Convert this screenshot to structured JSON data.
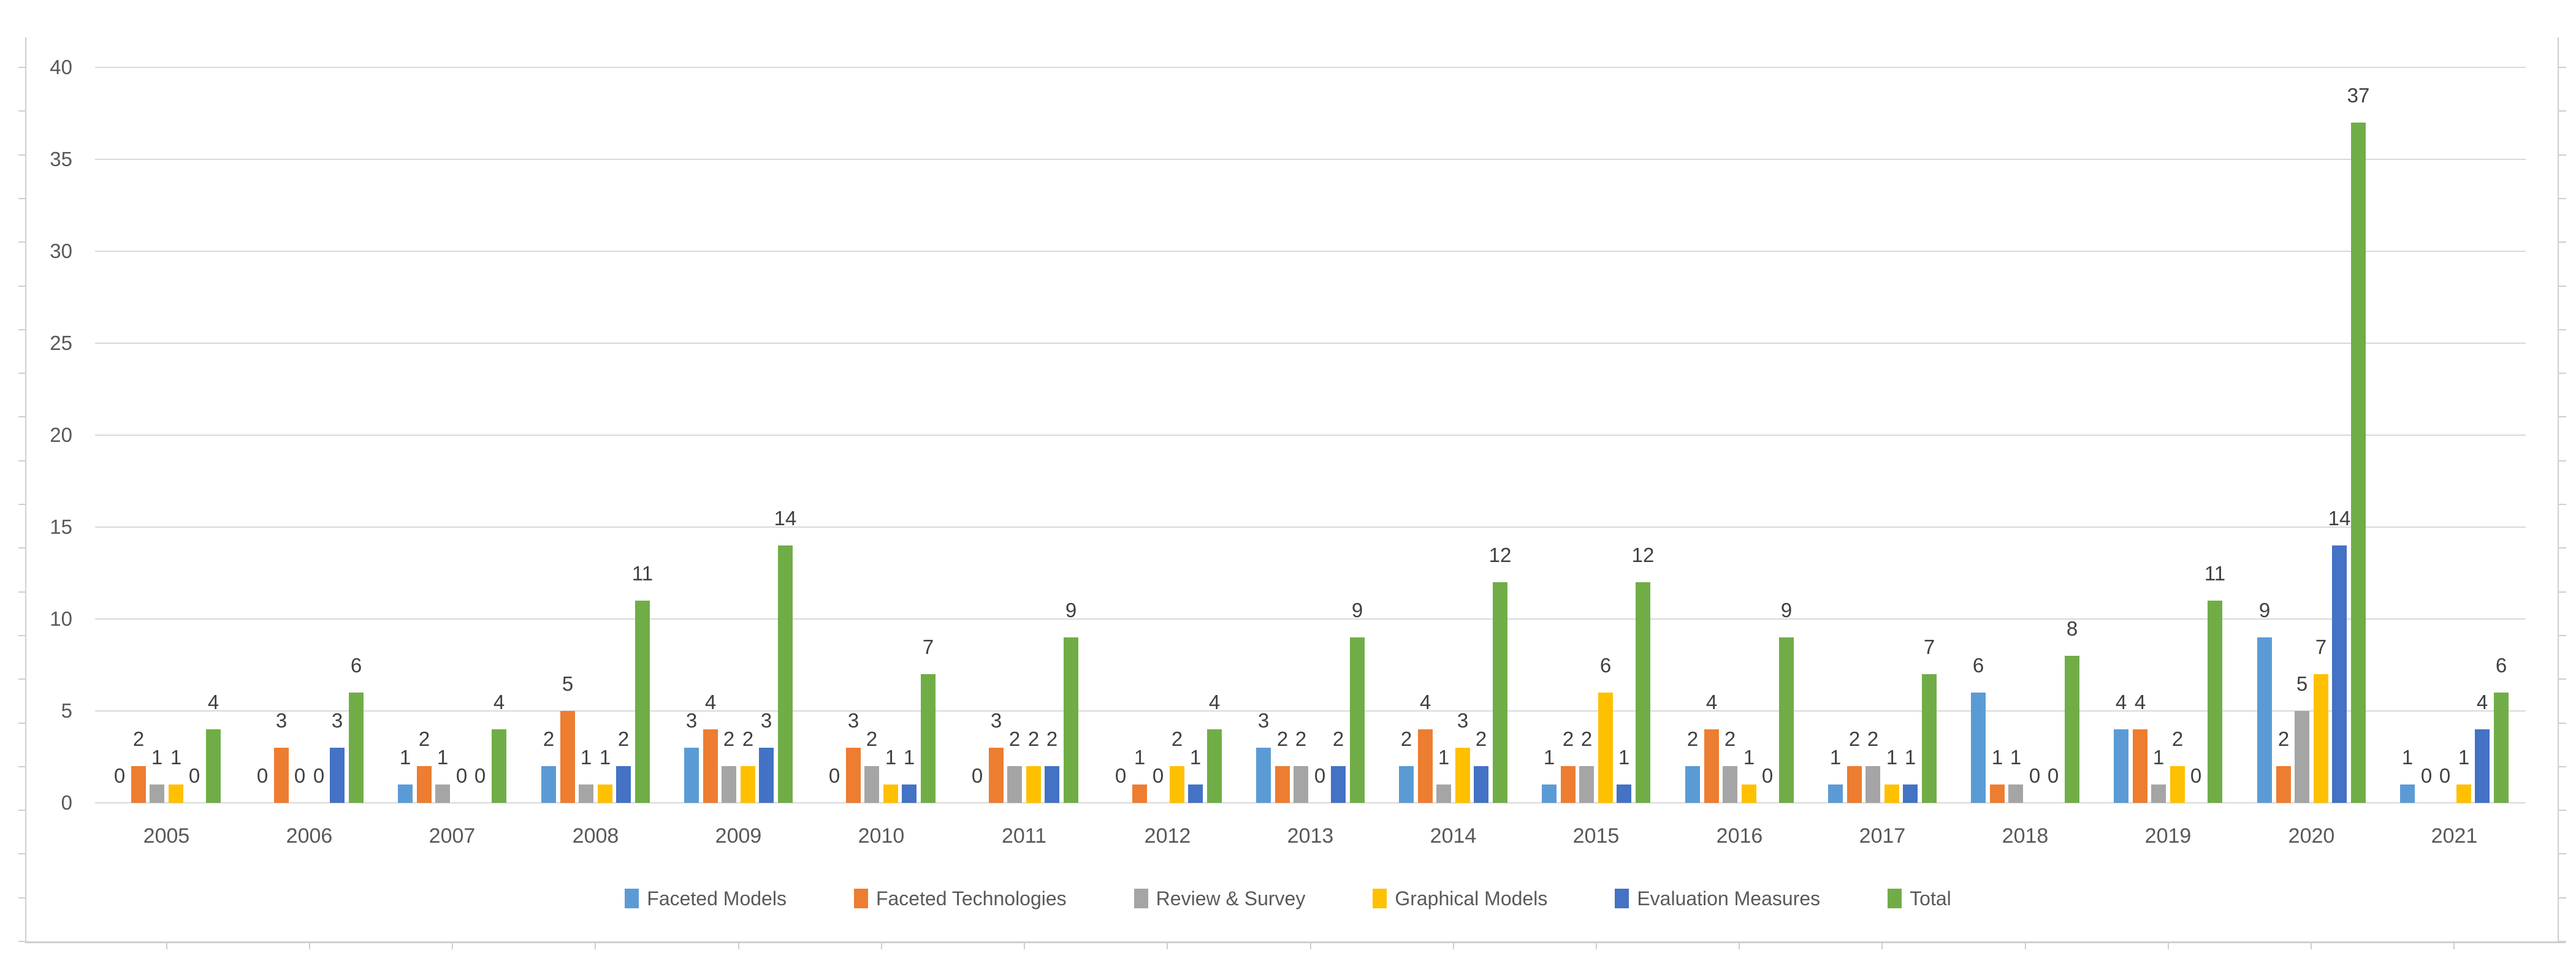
{
  "chart_data": {
    "type": "bar",
    "title": "",
    "xlabel": "",
    "ylabel": "",
    "categories": [
      "2005",
      "2006",
      "2007",
      "2008",
      "2009",
      "2010",
      "2011",
      "2012",
      "2013",
      "2014",
      "2015",
      "2016",
      "2017",
      "2018",
      "2019",
      "2020",
      "2021"
    ],
    "series": [
      {
        "name": "Faceted Models",
        "color": "#5B9BD5",
        "values": [
          0,
          0,
          1,
          2,
          3,
          0,
          0,
          0,
          3,
          2,
          1,
          2,
          1,
          6,
          4,
          9,
          1
        ]
      },
      {
        "name": "Faceted Technologies",
        "color": "#ED7D31",
        "values": [
          2,
          3,
          2,
          5,
          4,
          3,
          3,
          1,
          2,
          4,
          2,
          4,
          2,
          1,
          4,
          2,
          0
        ]
      },
      {
        "name": "Review & Survey",
        "color": "#A5A5A5",
        "values": [
          1,
          0,
          1,
          1,
          2,
          2,
          2,
          0,
          2,
          1,
          2,
          2,
          2,
          1,
          1,
          5,
          0
        ]
      },
      {
        "name": "Graphical Models",
        "color": "#FFC000",
        "values": [
          1,
          0,
          0,
          1,
          2,
          1,
          2,
          2,
          0,
          3,
          6,
          1,
          1,
          0,
          2,
          7,
          1
        ]
      },
      {
        "name": "Evaluation Measures",
        "color": "#4472C4",
        "values": [
          0,
          3,
          0,
          2,
          3,
          1,
          2,
          1,
          2,
          2,
          1,
          0,
          1,
          0,
          0,
          14,
          4
        ]
      },
      {
        "name": "Total",
        "color": "#70AD47",
        "values": [
          4,
          6,
          4,
          11,
          14,
          7,
          9,
          4,
          9,
          12,
          12,
          9,
          7,
          8,
          11,
          37,
          6
        ]
      }
    ],
    "y_ticks": [
      0,
      5,
      10,
      15,
      20,
      25,
      30,
      35,
      40
    ],
    "ylim": [
      0,
      40
    ],
    "grid": true,
    "legend_position": "bottom",
    "data_labels_shown": true
  },
  "colors": {
    "background": "#FFFFFF",
    "gridline": "#D9D9D9",
    "frame": "#D0CECE",
    "data_label": "#404040",
    "axis_text": "#595959"
  }
}
